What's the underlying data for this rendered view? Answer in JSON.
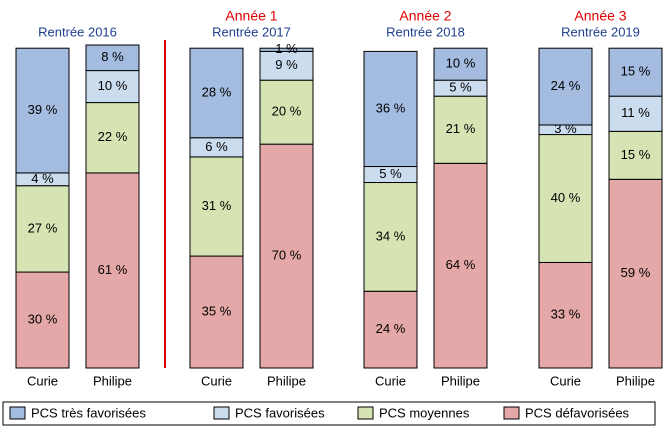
{
  "chart_data": {
    "type": "stacked_bar",
    "groups": [
      {
        "label": "Rentrée 2016"
      },
      {
        "year": "Année 1",
        "label": "Rentrée 2017"
      },
      {
        "year": "Année 2",
        "label": "Rentrée 2018"
      },
      {
        "year": "Année 3",
        "label": "Rentrée 2019"
      }
    ],
    "categories": [
      "Curie",
      "Philipe",
      "Curie",
      "Philipe",
      "Curie",
      "Philipe",
      "Curie",
      "Philipe"
    ],
    "series": [
      {
        "name": "PCS très favorisées",
        "color": "#a3bce0",
        "values": [
          39,
          8,
          28,
          1,
          36,
          10,
          24,
          15
        ],
        "value_labels": [
          "39 %",
          "8 %",
          "28 %",
          "1 %",
          "36 %",
          "10 %",
          "24 %",
          "15 %"
        ]
      },
      {
        "name": "PCS favorisées",
        "color": "#cbdcef",
        "values": [
          4,
          10,
          6,
          9,
          5,
          5,
          3,
          11
        ],
        "value_labels": [
          "4 %",
          "10 %",
          "6 %",
          "9 %",
          "5 %",
          "5 %",
          "3 %",
          "11 %"
        ]
      },
      {
        "name": "PCS moyennes",
        "color": "#d6e4b4",
        "values": [
          27,
          22,
          31,
          20,
          34,
          21,
          40,
          15
        ],
        "value_labels": [
          "27 %",
          "22 %",
          "31 %",
          "20 %",
          "34 %",
          "21 %",
          "40 %",
          "15 %"
        ]
      },
      {
        "name": "PCS défavorisées",
        "color": "#e5a8a8",
        "values": [
          30,
          61,
          35,
          70,
          24,
          64,
          33,
          59
        ],
        "value_labels": [
          "30 %",
          "61 %",
          "35 %",
          "70 %",
          "24 %",
          "64 %",
          "33 %",
          "59 %"
        ]
      }
    ]
  }
}
